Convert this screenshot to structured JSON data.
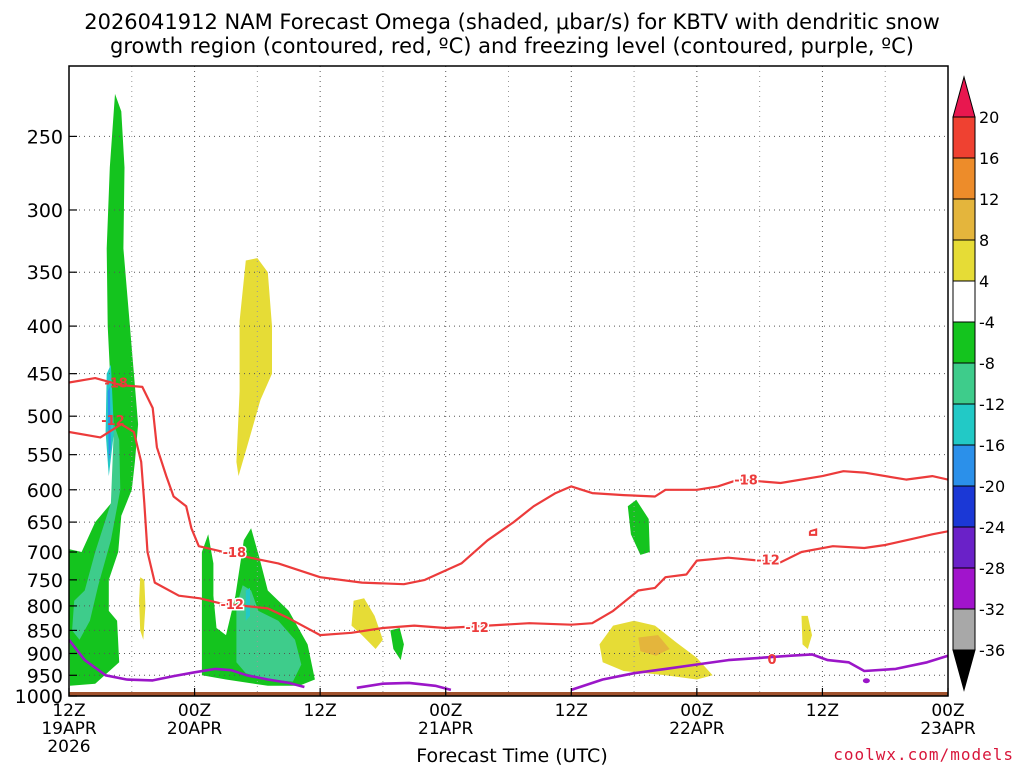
{
  "header": {
    "title_line1": "2026041912 NAM Forecast Omega (shaded, μbar/s) for KBTV with dendritic snow",
    "title_line2": "growth region (contoured, red, ºC) and freezing level (contoured, purple, ºC)"
  },
  "footer": {
    "xlabel": "Forecast Time (UTC)",
    "credit": "coolwx.com/models"
  },
  "chart_data": {
    "type": "heatmap",
    "title": "2026041912 NAM Forecast Omega (shaded, μbar/s) for KBTV with dendritic snow growth region (contoured, red, ºC) and freezing level (contoured, purple, ºC)",
    "xlabel": "Forecast Time (UTC)",
    "ylabel": "",
    "x_unit": "hours since 2026-04-19 12Z",
    "xlim": [
      0,
      84
    ],
    "ylim_pressure_hPa": [
      1000,
      210
    ],
    "y_scale": "log-pressure",
    "grid": true,
    "x_ticks": [
      {
        "h": 0,
        "l1": "12Z",
        "l2": "19APR",
        "l3": "2026"
      },
      {
        "h": 12,
        "l1": "00Z",
        "l2": "20APR",
        "l3": ""
      },
      {
        "h": 24,
        "l1": "12Z",
        "l2": "",
        "l3": ""
      },
      {
        "h": 36,
        "l1": "00Z",
        "l2": "21APR",
        "l3": ""
      },
      {
        "h": 48,
        "l1": "12Z",
        "l2": "",
        "l3": ""
      },
      {
        "h": 60,
        "l1": "00Z",
        "l2": "22APR",
        "l3": ""
      },
      {
        "h": 72,
        "l1": "12Z",
        "l2": "",
        "l3": ""
      },
      {
        "h": 84,
        "l1": "00Z",
        "l2": "23APR",
        "l3": ""
      }
    ],
    "y_ticks": [
      250,
      300,
      350,
      400,
      450,
      500,
      550,
      600,
      650,
      700,
      750,
      800,
      850,
      900,
      950,
      1000
    ],
    "colorbar": {
      "levels": [
        "20",
        "16",
        "12",
        "8",
        "4",
        "-4",
        "-8",
        "-12",
        "-16",
        "-20",
        "-24",
        "-28",
        "-32",
        "-36"
      ],
      "colors": [
        "#e8174f",
        "#ef4131",
        "#ed8c2a",
        "#e4b53c",
        "#e6dc36",
        "#ffffff",
        "#14c41e",
        "#3ecc8b",
        "#22c9c6",
        "#2b90ea",
        "#1b38d6",
        "#6a21c8",
        "#a114cc",
        "#a8a8a8",
        "#000000"
      ]
    },
    "ground_color": "#a0522d",
    "omega_regions": [
      {
        "color": "#e6dc36",
        "pts": [
          [
            16.3,
            395
          ],
          [
            16.9,
            340
          ],
          [
            18.0,
            338
          ],
          [
            19.0,
            350
          ],
          [
            19.4,
            400
          ],
          [
            19.4,
            450
          ],
          [
            18.3,
            480
          ],
          [
            17.0,
            540
          ],
          [
            16.2,
            580
          ],
          [
            16.0,
            560
          ],
          [
            16.3,
            470
          ]
        ]
      },
      {
        "color": "#e6dc36",
        "pts": [
          [
            6.8,
            745
          ],
          [
            7.2,
            750
          ],
          [
            7.3,
            800
          ],
          [
            7.1,
            870
          ],
          [
            6.8,
            850
          ],
          [
            6.7,
            790
          ]
        ]
      },
      {
        "color": "#e6dc36",
        "pts": [
          [
            27.2,
            790
          ],
          [
            28.2,
            785
          ],
          [
            29.2,
            820
          ],
          [
            30.0,
            870
          ],
          [
            29.3,
            890
          ],
          [
            28.0,
            860
          ],
          [
            27.0,
            840
          ]
        ]
      },
      {
        "color": "#e6dc36",
        "pts": [
          [
            50.7,
            880
          ],
          [
            52.0,
            840
          ],
          [
            54.0,
            830
          ],
          [
            56.0,
            840
          ],
          [
            58.0,
            875
          ],
          [
            60.0,
            910
          ],
          [
            61.5,
            950
          ],
          [
            60.0,
            960
          ],
          [
            57.0,
            950
          ],
          [
            53.0,
            940
          ],
          [
            51.0,
            920
          ]
        ]
      },
      {
        "color": "#e4b53c",
        "pts": [
          [
            54.4,
            865
          ],
          [
            56.3,
            860
          ],
          [
            57.4,
            890
          ],
          [
            56.1,
            905
          ],
          [
            54.6,
            895
          ]
        ]
      },
      {
        "color": "#e6dc36",
        "pts": [
          [
            70.0,
            820
          ],
          [
            70.6,
            820
          ],
          [
            71.0,
            860
          ],
          [
            70.6,
            890
          ],
          [
            70.1,
            880
          ]
        ]
      },
      {
        "color": "#14c41e",
        "pts": [
          [
            4.3,
            615
          ],
          [
            4.3,
            540
          ],
          [
            4.0,
            470
          ],
          [
            3.7,
            400
          ],
          [
            3.6,
            330
          ],
          [
            3.9,
            270
          ],
          [
            4.4,
            225
          ],
          [
            5.0,
            235
          ],
          [
            5.3,
            270
          ],
          [
            5.2,
            330
          ],
          [
            6.2,
            450
          ],
          [
            6.6,
            510
          ],
          [
            6.3,
            560
          ],
          [
            6.0,
            600
          ],
          [
            5.0,
            640
          ],
          [
            4.7,
            700
          ],
          [
            3.8,
            750
          ],
          [
            3.8,
            810
          ],
          [
            4.6,
            830
          ],
          [
            4.8,
            920
          ],
          [
            2.5,
            970
          ],
          [
            0.1,
            975
          ],
          [
            0,
            695
          ],
          [
            1.2,
            700
          ],
          [
            2.5,
            650
          ]
        ]
      },
      {
        "color": "#3ecc8b",
        "pts": [
          [
            2.5,
            700
          ],
          [
            4.0,
            620
          ],
          [
            4.3,
            510
          ],
          [
            4.8,
            530
          ],
          [
            4.9,
            600
          ],
          [
            4.0,
            680
          ],
          [
            2.8,
            760
          ],
          [
            2.0,
            830
          ],
          [
            1.0,
            870
          ],
          [
            0.3,
            850
          ],
          [
            0.5,
            790
          ],
          [
            1.5,
            770
          ]
        ]
      },
      {
        "color": "#22c9c6",
        "pts": [
          [
            3.6,
            450
          ],
          [
            4.0,
            440
          ],
          [
            4.3,
            520
          ],
          [
            3.8,
            580
          ],
          [
            3.5,
            520
          ]
        ]
      },
      {
        "color": "#2b90ea",
        "pts": [
          [
            3.7,
            470
          ],
          [
            3.9,
            465
          ],
          [
            4.0,
            540
          ],
          [
            3.8,
            560
          ]
        ]
      },
      {
        "color": "#14c41e",
        "pts": [
          [
            12.7,
            700
          ],
          [
            13.3,
            670
          ],
          [
            13.8,
            720
          ],
          [
            13.8,
            780
          ],
          [
            14.1,
            845
          ],
          [
            15.0,
            860
          ],
          [
            15.9,
            780
          ],
          [
            16.7,
            680
          ],
          [
            17.4,
            660
          ],
          [
            18.2,
            710
          ],
          [
            19.0,
            770
          ],
          [
            21.0,
            810
          ],
          [
            22.8,
            880
          ],
          [
            23.5,
            960
          ],
          [
            22.0,
            975
          ],
          [
            19.0,
            975
          ],
          [
            15.0,
            960
          ],
          [
            12.7,
            950
          ]
        ]
      },
      {
        "color": "#3ecc8b",
        "pts": [
          [
            16.0,
            800
          ],
          [
            16.6,
            760
          ],
          [
            17.4,
            770
          ],
          [
            18.1,
            810
          ],
          [
            20.0,
            830
          ],
          [
            21.6,
            870
          ],
          [
            22.2,
            925
          ],
          [
            21.4,
            965
          ],
          [
            19.0,
            960
          ],
          [
            16.9,
            945
          ],
          [
            16.0,
            920
          ]
        ]
      },
      {
        "color": "#22c9c6",
        "pts": [
          [
            16.9,
            770
          ],
          [
            17.3,
            765
          ],
          [
            17.3,
            820
          ],
          [
            16.9,
            830
          ]
        ]
      },
      {
        "color": "#14c41e",
        "pts": [
          [
            53.4,
            625
          ],
          [
            54.2,
            615
          ],
          [
            55.4,
            645
          ],
          [
            55.5,
            700
          ],
          [
            54.6,
            705
          ],
          [
            53.7,
            670
          ]
        ]
      },
      {
        "color": "#14c41e",
        "pts": [
          [
            30.7,
            850
          ],
          [
            31.6,
            845
          ],
          [
            32.0,
            880
          ],
          [
            31.7,
            915
          ],
          [
            31.0,
            890
          ]
        ]
      }
    ],
    "contours_red": [
      {
        "label": "-18",
        "label_at": [
          4.5,
          460
        ],
        "pts": [
          [
            0,
            460
          ],
          [
            2.5,
            455
          ],
          [
            5.0,
            463
          ],
          [
            7.0,
            465
          ],
          [
            8.0,
            490
          ],
          [
            8.4,
            540
          ],
          [
            9.3,
            580
          ],
          [
            10.0,
            610
          ],
          [
            11.2,
            625
          ],
          [
            11.7,
            660
          ],
          [
            12.4,
            690
          ],
          [
            16.0,
            705
          ],
          [
            20.0,
            720
          ],
          [
            24.0,
            745
          ],
          [
            28.0,
            755
          ],
          [
            32.0,
            758
          ],
          [
            34.0,
            750
          ],
          [
            37.5,
            720
          ],
          [
            40.0,
            680
          ],
          [
            42.5,
            650
          ],
          [
            44.4,
            625
          ],
          [
            46.5,
            605
          ],
          [
            48.0,
            595
          ],
          [
            50.0,
            605
          ],
          [
            53.0,
            608
          ],
          [
            56.0,
            610
          ],
          [
            57.0,
            600
          ],
          [
            60.0,
            600
          ],
          [
            62.0,
            595
          ],
          [
            64.0,
            585
          ],
          [
            68.0,
            590
          ],
          [
            72.0,
            580
          ],
          [
            74.0,
            573
          ],
          [
            76.0,
            575
          ],
          [
            80.0,
            585
          ],
          [
            82.5,
            580
          ],
          [
            84.0,
            585
          ]
        ]
      },
      {
        "label": "-12",
        "label_at": [
          4.2,
          505
        ],
        "pts": [
          [
            0,
            520
          ],
          [
            3.0,
            527
          ],
          [
            5.0,
            510
          ],
          [
            6.2,
            520
          ],
          [
            6.9,
            560
          ],
          [
            7.2,
            620
          ],
          [
            7.5,
            700
          ],
          [
            8.2,
            755
          ],
          [
            10.5,
            780
          ],
          [
            12.5,
            785
          ],
          [
            14.5,
            795
          ],
          [
            19.0,
            805
          ],
          [
            21.0,
            825
          ],
          [
            24.0,
            860
          ],
          [
            27.0,
            855
          ],
          [
            30.0,
            845
          ],
          [
            33.0,
            840
          ],
          [
            36.0,
            845
          ],
          [
            40.0,
            840
          ],
          [
            44.0,
            835
          ],
          [
            48.0,
            838
          ],
          [
            50.0,
            835
          ],
          [
            52.0,
            810
          ],
          [
            54.4,
            770
          ],
          [
            56.0,
            765
          ],
          [
            57.0,
            745
          ],
          [
            59.0,
            740
          ],
          [
            60.0,
            715
          ],
          [
            63.0,
            710
          ],
          [
            66.0,
            715
          ],
          [
            68.0,
            718
          ],
          [
            70.0,
            700
          ],
          [
            73.0,
            690
          ],
          [
            76.0,
            693
          ],
          [
            78.0,
            688
          ],
          [
            81.0,
            676
          ],
          [
            82.5,
            670
          ],
          [
            84.0,
            665
          ]
        ]
      }
    ],
    "red_extra": [
      {
        "pts": [
          [
            70.8,
            665
          ],
          [
            71.4,
            662
          ],
          [
            71.4,
            671
          ],
          [
            70.8,
            671
          ],
          [
            70.8,
            665
          ]
        ]
      }
    ],
    "red_labels": [
      {
        "text": "-18",
        "h": 15.8,
        "p": 700
      },
      {
        "text": "-12",
        "h": 15.6,
        "p": 796
      },
      {
        "text": "-12",
        "h": 39.0,
        "p": 843
      },
      {
        "text": "-18",
        "h": 64.7,
        "p": 585
      },
      {
        "text": "-12",
        "h": 66.8,
        "p": 713
      }
    ],
    "contours_purple": [
      {
        "label": "0",
        "pts": [
          [
            0,
            870
          ],
          [
            1.5,
            915
          ],
          [
            3.5,
            950
          ],
          [
            5.5,
            960
          ],
          [
            8.0,
            962
          ],
          [
            10.0,
            952
          ],
          [
            12.0,
            943
          ],
          [
            14.0,
            935
          ],
          [
            15.5,
            938
          ],
          [
            17.0,
            950
          ],
          [
            19.0,
            960
          ],
          [
            21.0,
            968
          ],
          [
            22.5,
            978
          ]
        ]
      },
      {
        "label": "",
        "pts": [
          [
            27.5,
            980
          ],
          [
            30.0,
            970
          ],
          [
            32.5,
            968
          ],
          [
            35.0,
            975
          ],
          [
            36.5,
            985
          ]
        ]
      },
      {
        "label": "0",
        "pts": [
          [
            48.0,
            985
          ],
          [
            51.0,
            960
          ],
          [
            54.0,
            945
          ],
          [
            57.0,
            935
          ],
          [
            60.0,
            925
          ],
          [
            63.0,
            915
          ],
          [
            66.0,
            910
          ],
          [
            69.0,
            905
          ],
          [
            71.0,
            902
          ],
          [
            72.5,
            915
          ],
          [
            74.5,
            920
          ],
          [
            76.0,
            940
          ],
          [
            79.0,
            935
          ],
          [
            82.0,
            920
          ],
          [
            84.0,
            905
          ]
        ]
      }
    ],
    "purple_labels": [
      {
        "text": "0",
        "h": 66.8,
        "p": 912
      }
    ]
  }
}
